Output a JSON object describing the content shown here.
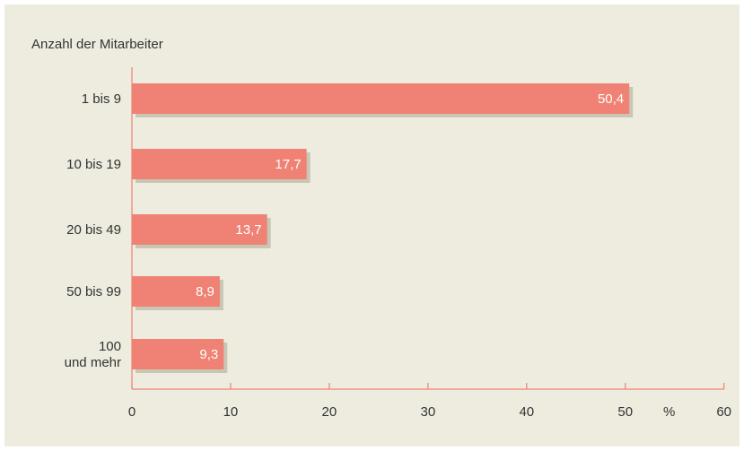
{
  "chart_data": {
    "type": "bar",
    "orientation": "horizontal",
    "y_title": "Anzahl der Mitarbeiter",
    "categories": [
      [
        "1 bis 9"
      ],
      [
        "10 bis 19"
      ],
      [
        "20 bis 49"
      ],
      [
        "50 bis 99"
      ],
      [
        "100",
        "und mehr"
      ]
    ],
    "values": [
      50.4,
      17.7,
      13.7,
      8.9,
      9.3
    ],
    "value_labels": [
      "50,4",
      "17,7",
      "13,7",
      "8,9",
      "9,3"
    ],
    "xlim": [
      0,
      60
    ],
    "x_ticks": [
      0,
      10,
      20,
      30,
      40,
      50,
      60
    ],
    "x_unit": "%",
    "grid": false,
    "legend": "none"
  },
  "colors": {
    "background": "#edecdf",
    "bar": "#ef8274",
    "bar_shadow": "#c9c6b4",
    "axis": "#ef8274",
    "text": "#333333",
    "value_text": "#ffffff"
  }
}
